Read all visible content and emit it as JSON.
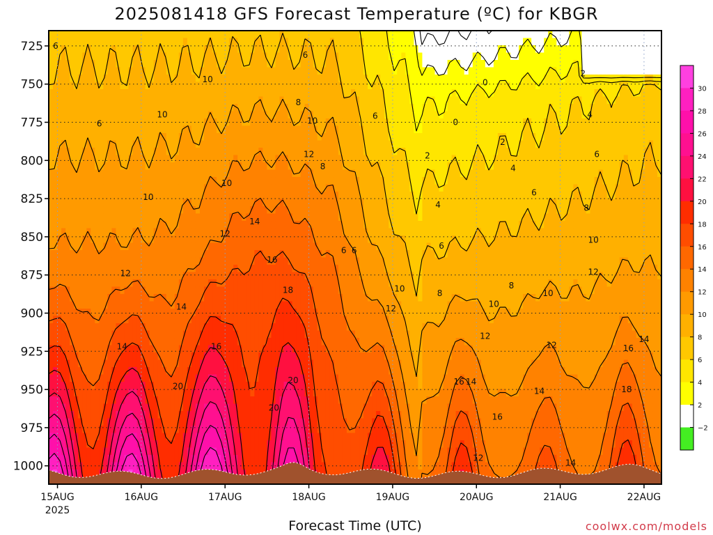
{
  "chart_data": {
    "type": "heatmap",
    "title": "2025081418 GFS Forecast Temperature (ºC) for KBGR",
    "xlabel": "Forecast Time (UTC)",
    "credit": "coolwx.com/models",
    "y_axis": {
      "label": "",
      "ticks": [
        "725",
        "750",
        "775",
        "800",
        "825",
        "850",
        "875",
        "900",
        "925",
        "950",
        "975",
        "1000"
      ],
      "values": [
        725,
        750,
        775,
        800,
        825,
        850,
        875,
        900,
        925,
        950,
        975,
        1000
      ],
      "ylim": [
        1012,
        715
      ]
    },
    "x_axis": {
      "tick_labels": [
        "15AUG",
        "16AUG",
        "17AUG",
        "18AUG",
        "19AUG",
        "20AUG",
        "21AUG",
        "22AUG"
      ],
      "sub_label": "2025",
      "range_hours_from_15AUG00": [
        -2.5,
        173
      ]
    },
    "colorbar": {
      "ticks": [
        30,
        28,
        26,
        24,
        22,
        20,
        18,
        16,
        14,
        12,
        10,
        8,
        6,
        4,
        2,
        -2
      ],
      "bands": [
        {
          "from": -4,
          "to": -2,
          "color": "#44ee22"
        },
        {
          "from": -2,
          "to": 2,
          "color": "#ffffff"
        },
        {
          "from": 2,
          "to": 4,
          "color": "#ffff00"
        },
        {
          "from": 4,
          "to": 6,
          "color": "#ffe600"
        },
        {
          "from": 6,
          "to": 8,
          "color": "#ffc800"
        },
        {
          "from": 8,
          "to": 10,
          "color": "#ffb000"
        },
        {
          "from": 10,
          "to": 12,
          "color": "#ff9a00"
        },
        {
          "from": 12,
          "to": 14,
          "color": "#ff8200"
        },
        {
          "from": 14,
          "to": 16,
          "color": "#ff6800"
        },
        {
          "from": 16,
          "to": 18,
          "color": "#ff4d00"
        },
        {
          "from": 18,
          "to": 20,
          "color": "#ff2d00"
        },
        {
          "from": 20,
          "to": 22,
          "color": "#ff1040"
        },
        {
          "from": 22,
          "to": 24,
          "color": "#ff1070"
        },
        {
          "from": 24,
          "to": 26,
          "color": "#ff1090"
        },
        {
          "from": 26,
          "to": 28,
          "color": "#ff10aa"
        },
        {
          "from": 28,
          "to": 30,
          "color": "#ff20c0"
        },
        {
          "from": 30,
          "to": 32,
          "color": "#ff40e0"
        }
      ]
    },
    "contour_labels": [
      {
        "t": -0.5,
        "p": 725,
        "v": "6"
      },
      {
        "t": 12.0,
        "p": 776,
        "v": "6"
      },
      {
        "t": 30.0,
        "p": 770,
        "v": "10"
      },
      {
        "t": 43.0,
        "p": 747,
        "v": "10"
      },
      {
        "t": 26.0,
        "p": 824,
        "v": "10"
      },
      {
        "t": 48.5,
        "p": 815,
        "v": "10"
      },
      {
        "t": 71.0,
        "p": 731,
        "v": "6"
      },
      {
        "t": 69.0,
        "p": 762,
        "v": "8"
      },
      {
        "t": 73.0,
        "p": 774,
        "v": "10"
      },
      {
        "t": 72.0,
        "p": 796,
        "v": "12"
      },
      {
        "t": 76.0,
        "p": 804,
        "v": "8"
      },
      {
        "t": 56.5,
        "p": 840,
        "v": "14"
      },
      {
        "t": 48.0,
        "p": 848,
        "v": "12"
      },
      {
        "t": 61.5,
        "p": 865,
        "v": "16"
      },
      {
        "t": 66.0,
        "p": 885,
        "v": "18"
      },
      {
        "t": 19.5,
        "p": 874,
        "v": "12"
      },
      {
        "t": 35.5,
        "p": 896,
        "v": "14"
      },
      {
        "t": 18.5,
        "p": 922,
        "v": "14"
      },
      {
        "t": 34.5,
        "p": 948,
        "v": "20"
      },
      {
        "t": 45.5,
        "p": 922,
        "v": "16"
      },
      {
        "t": 62.0,
        "p": 962,
        "v": "20"
      },
      {
        "t": 67.5,
        "p": 944,
        "v": "20"
      },
      {
        "t": 91.0,
        "p": 771,
        "v": "6"
      },
      {
        "t": 85.0,
        "p": 859,
        "v": "6"
      },
      {
        "t": 82.0,
        "p": 859,
        "v": "6"
      },
      {
        "t": 98.0,
        "p": 884,
        "v": "10"
      },
      {
        "t": 95.5,
        "p": 897,
        "v": "12"
      },
      {
        "t": 106.0,
        "p": 797,
        "v": "2"
      },
      {
        "t": 109.0,
        "p": 829,
        "v": "4"
      },
      {
        "t": 110.0,
        "p": 856,
        "v": "6"
      },
      {
        "t": 109.5,
        "p": 887,
        "v": "8"
      },
      {
        "t": 114.0,
        "p": 775,
        "v": "0"
      },
      {
        "t": 122.5,
        "p": 749,
        "v": "0"
      },
      {
        "t": 127.5,
        "p": 788,
        "v": "2"
      },
      {
        "t": 130.5,
        "p": 805,
        "v": "4"
      },
      {
        "t": 136.5,
        "p": 821,
        "v": "6"
      },
      {
        "t": 150.5,
        "p": 743,
        "v": "2"
      },
      {
        "t": 152.5,
        "p": 770,
        "v": "4"
      },
      {
        "t": 154.5,
        "p": 796,
        "v": "6"
      },
      {
        "t": 151.5,
        "p": 831,
        "v": "8"
      },
      {
        "t": 153.5,
        "p": 852,
        "v": "10"
      },
      {
        "t": 153.5,
        "p": 873,
        "v": "12"
      },
      {
        "t": 130.0,
        "p": 882,
        "v": "8"
      },
      {
        "t": 140.5,
        "p": 887,
        "v": "10"
      },
      {
        "t": 125.0,
        "p": 894,
        "v": "10"
      },
      {
        "t": 122.5,
        "p": 915,
        "v": "12"
      },
      {
        "t": 141.5,
        "p": 921,
        "v": "12"
      },
      {
        "t": 138.0,
        "p": 951,
        "v": "14"
      },
      {
        "t": 115.0,
        "p": 945,
        "v": "16"
      },
      {
        "t": 118.5,
        "p": 945,
        "v": "14"
      },
      {
        "t": 126.0,
        "p": 968,
        "v": "16"
      },
      {
        "t": 120.5,
        "p": 995,
        "v": "12"
      },
      {
        "t": 163.0,
        "p": 950,
        "v": "18"
      },
      {
        "t": 163.5,
        "p": 923,
        "v": "16"
      },
      {
        "t": 168.0,
        "p": 917,
        "v": "14"
      },
      {
        "t": 147.0,
        "p": 998,
        "v": "14"
      }
    ],
    "grid": true,
    "series": []
  }
}
